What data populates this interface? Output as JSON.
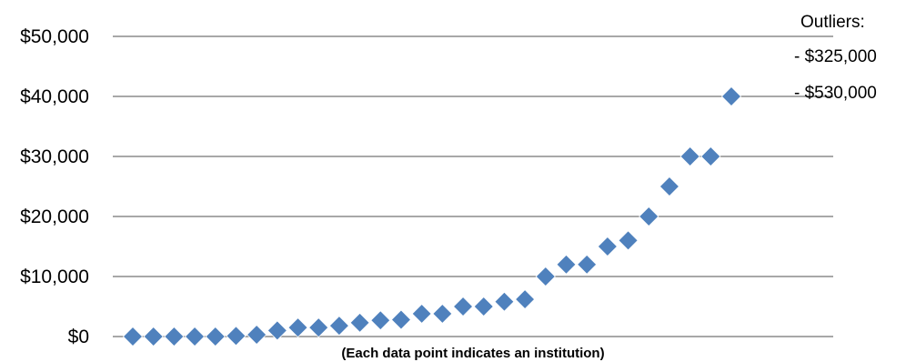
{
  "chart_data": {
    "type": "scatter",
    "title": "",
    "xlabel": "(Each data point indicates an institution)",
    "ylabel": "",
    "ylim": [
      0,
      50000
    ],
    "yticks": [
      0,
      10000,
      20000,
      30000,
      40000,
      50000
    ],
    "ytick_labels": [
      "$0",
      "$10,000",
      "$20,000",
      "$30,000",
      "$40,000",
      "$50,000"
    ],
    "grid": true,
    "marker": "diamond",
    "series": [
      {
        "color": "#4f81bd",
        "x": [
          1,
          2,
          3,
          4,
          5,
          6,
          7,
          8,
          9,
          10,
          11,
          12,
          13,
          14,
          15,
          16,
          17,
          18,
          19,
          20,
          21,
          22,
          23,
          24,
          25,
          26,
          27,
          28,
          29,
          30
        ],
        "values": [
          0,
          0,
          0,
          0,
          0,
          100,
          300,
          1000,
          1500,
          1500,
          1800,
          2300,
          2700,
          2800,
          3800,
          3800,
          5000,
          5000,
          5800,
          6200,
          10000,
          12000,
          12000,
          15000,
          16000,
          20000,
          25000,
          30000,
          30000,
          40000
        ]
      }
    ],
    "annotation": {
      "heading": "Outliers:",
      "lines": [
        "- $325,000",
        "- $530,000"
      ]
    }
  }
}
